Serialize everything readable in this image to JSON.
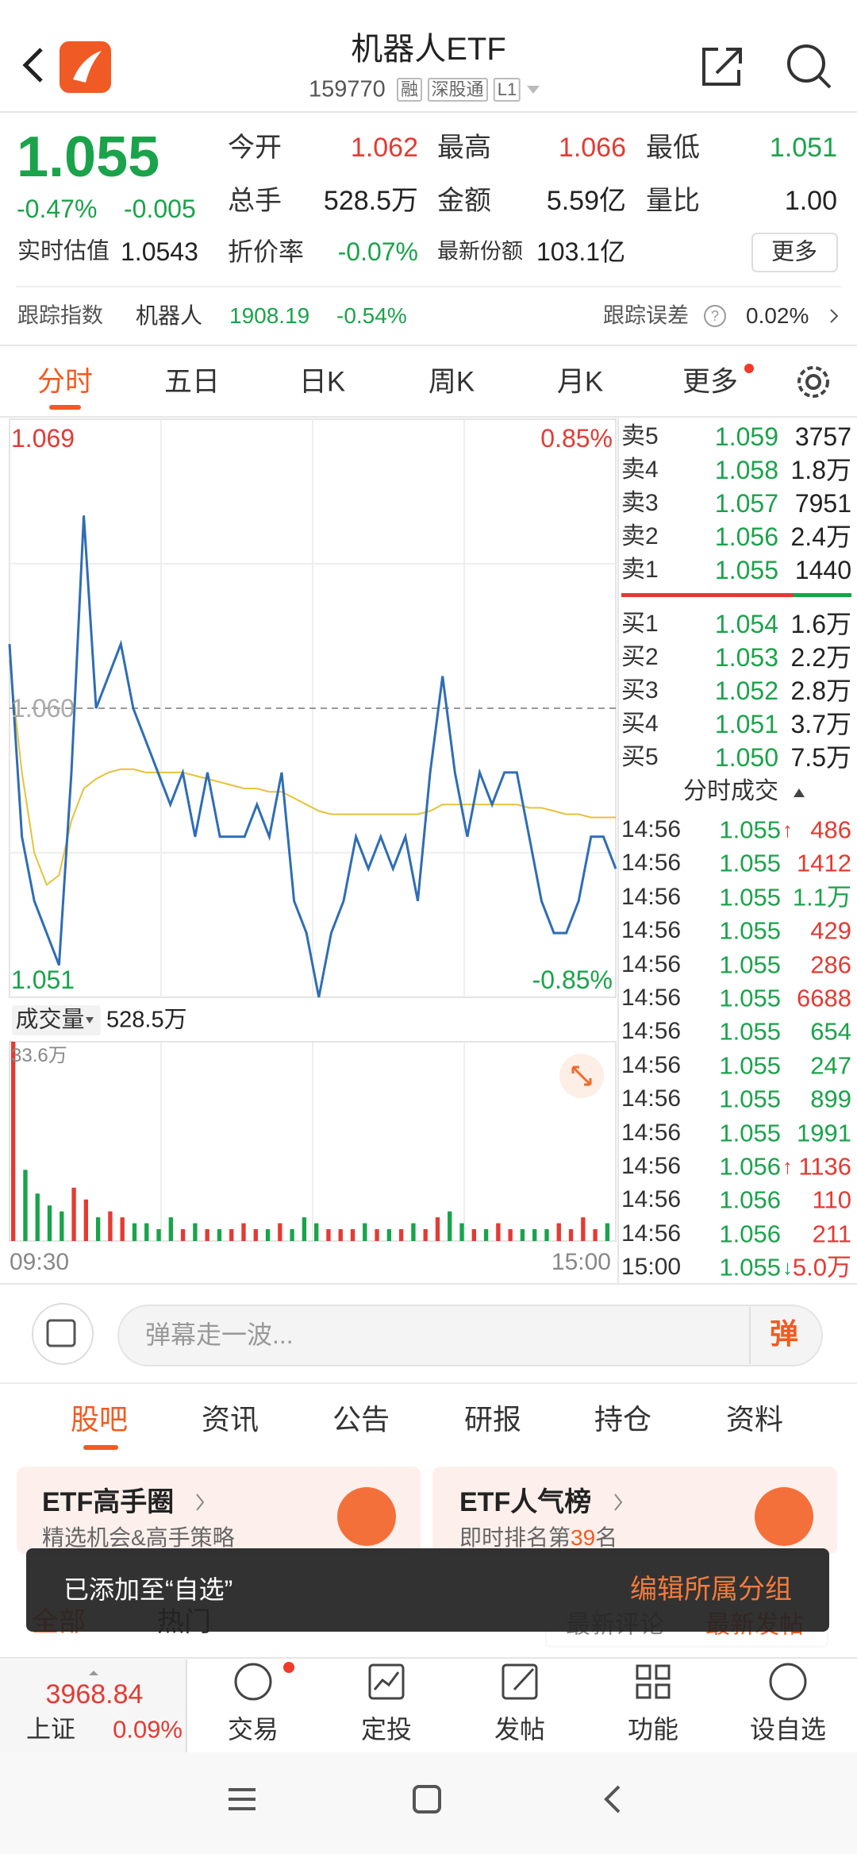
{
  "header": {
    "title": "机器人ETF",
    "code": "159770",
    "tags": [
      "融",
      "深股通",
      "L1"
    ]
  },
  "quote": {
    "price": "1.055",
    "change_pct": "-0.47%",
    "change": "-0.005",
    "stats": [
      [
        "今开",
        "1.062"
      ],
      [
        "最高",
        "1.066"
      ],
      [
        "最低",
        "1.051"
      ],
      [
        "总手",
        "528.5万"
      ],
      [
        "金额",
        "5.59亿"
      ],
      [
        "量比",
        "1.00"
      ],
      [
        "实时估值",
        "1.0543"
      ],
      [
        "折价率",
        "-0.07%"
      ],
      [
        "最新份额",
        "103.1亿"
      ]
    ],
    "more": "更多"
  },
  "tracking": {
    "label": "跟踪指数",
    "index": "机器人",
    "value": "1908.19",
    "change": "-0.54%",
    "error_label": "跟踪误差",
    "error": "0.02%"
  },
  "tabs": [
    "分时",
    "五日",
    "日K",
    "周K",
    "月K",
    "更多"
  ],
  "chart_data": [
    {
      "type": "line",
      "ylim": [
        1.051,
        1.069
      ],
      "yticks": [
        1.069,
        {
          "value": 1.06,
          "label": "1.060"
        },
        1.051
      ],
      "y2lim": [
        -0.85,
        0.85
      ],
      "y2ticks": [
        {
          "value": 0.85,
          "label": "0.85%"
        },
        {
          "value": -0.85,
          "label": "-0.85%"
        }
      ],
      "xticks": [
        "09:30",
        "15:00"
      ],
      "series": [
        {
          "color": "#2f6db5",
          "values": [
            1.062,
            1.056,
            1.054,
            1.053,
            1.052,
            1.058,
            1.066,
            1.06,
            1.061,
            1.062,
            1.06,
            1.059,
            1.058,
            1.057,
            1.058,
            1.056,
            1.058,
            1.056,
            1.056,
            1.056,
            1.057,
            1.056,
            1.058,
            1.054,
            1.053,
            1.051,
            1.053,
            1.054,
            1.056,
            1.055,
            1.056,
            1.055,
            1.056,
            1.054,
            1.058,
            1.061,
            1.058,
            1.056,
            1.058,
            1.057,
            1.058,
            1.058,
            1.056,
            1.054,
            1.053,
            1.053,
            1.054,
            1.056,
            1.056,
            1.055
          ]
        },
        {
          "color": "#e6c23a",
          "values": [
            1.0615,
            1.058,
            1.0555,
            1.0545,
            1.0548,
            1.0565,
            1.0575,
            1.0578,
            1.058,
            1.0581,
            1.0581,
            1.058,
            1.058,
            1.058,
            1.058,
            1.0579,
            1.0578,
            1.0577,
            1.0576,
            1.0575,
            1.0575,
            1.0574,
            1.0574,
            1.0572,
            1.057,
            1.0568,
            1.0567,
            1.0567,
            1.0567,
            1.0567,
            1.0567,
            1.0567,
            1.0567,
            1.0567,
            1.0568,
            1.057,
            1.057,
            1.057,
            1.057,
            1.057,
            1.057,
            1.057,
            1.0569,
            1.0569,
            1.0568,
            1.0567,
            1.0567,
            1.0566,
            1.0566,
            1.0566
          ]
        }
      ]
    },
    {
      "type": "bar",
      "title": "成交量",
      "total": "528.5万",
      "ylim": [
        0,
        33.6
      ],
      "yticks": [
        {
          "value": 33.6,
          "label": "33.6万"
        }
      ],
      "up_color": "#e33b33",
      "down_color": "#1aa34a",
      "values": [
        33.6,
        12,
        8,
        6,
        5,
        9,
        7,
        4,
        5,
        4,
        3,
        3,
        2,
        4,
        2,
        3,
        2,
        2,
        2,
        3,
        2,
        2,
        3,
        2,
        4,
        3,
        2,
        2,
        2,
        3,
        2,
        2,
        2,
        3,
        2,
        4,
        5,
        3,
        2,
        2,
        3,
        2,
        2,
        2,
        2,
        3,
        2,
        4,
        2,
        3
      ]
    }
  ],
  "order_book": {
    "asks": [
      [
        "卖5",
        "1.059",
        "3757"
      ],
      [
        "卖4",
        "1.058",
        "1.8万"
      ],
      [
        "卖3",
        "1.057",
        "7951"
      ],
      [
        "卖2",
        "1.056",
        "2.4万"
      ],
      [
        "卖1",
        "1.055",
        "1440"
      ]
    ],
    "bids": [
      [
        "买1",
        "1.054",
        "1.6万"
      ],
      [
        "买2",
        "1.053",
        "2.2万"
      ],
      [
        "买3",
        "1.052",
        "2.8万"
      ],
      [
        "买4",
        "1.051",
        "3.7万"
      ],
      [
        "买5",
        "1.050",
        "7.5万"
      ]
    ]
  },
  "trades": {
    "title": "分时成交",
    "rows": [
      {
        "time": "14:56",
        "price": "1.055",
        "flag": "↑",
        "vol": "486",
        "vol_color": "#e33b33"
      },
      {
        "time": "14:56",
        "price": "1.055",
        "vol": "1412",
        "vol_color": "#e33b33"
      },
      {
        "time": "14:56",
        "price": "1.055",
        "vol": "1.1万",
        "vol_color": "#1aa34a"
      },
      {
        "time": "14:56",
        "price": "1.055",
        "vol": "429",
        "vol_color": "#e33b33"
      },
      {
        "time": "14:56",
        "price": "1.055",
        "vol": "286",
        "vol_color": "#e33b33"
      },
      {
        "time": "14:56",
        "price": "1.055",
        "vol": "6688",
        "vol_color": "#e33b33"
      },
      {
        "time": "14:56",
        "price": "1.055",
        "vol": "654",
        "vol_color": "#1aa34a"
      },
      {
        "time": "14:56",
        "price": "1.055",
        "vol": "247",
        "vol_color": "#1aa34a"
      },
      {
        "time": "14:56",
        "price": "1.055",
        "vol": "899",
        "vol_color": "#1aa34a"
      },
      {
        "time": "14:56",
        "price": "1.055",
        "vol": "1991",
        "vol_color": "#1aa34a"
      },
      {
        "time": "14:56",
        "price": "1.056",
        "flag": "↑",
        "vol": "1136",
        "vol_color": "#e33b33"
      },
      {
        "time": "14:56",
        "price": "1.056",
        "vol": "110",
        "vol_color": "#e33b33"
      },
      {
        "time": "14:56",
        "price": "1.056",
        "vol": "211",
        "vol_color": "#e33b33"
      },
      {
        "time": "15:00",
        "price": "1.055",
        "flag": "↓",
        "vol": "5.0万",
        "vol_color": "#e33b33"
      }
    ]
  },
  "comment": {
    "placeholder": "弹幕走一波...",
    "button": "弹"
  },
  "tabs2": [
    "股吧",
    "资讯",
    "公告",
    "研报",
    "持仓",
    "资料"
  ],
  "cards": [
    {
      "title": "ETF高手圈",
      "subtitle": "精选机会&高手策略"
    },
    {
      "title": "ETF人气榜",
      "subtitle_pre": "即时排名第",
      "rank": "39",
      "subtitle_post": "名"
    }
  ],
  "feed_tabs": [
    "全部",
    "热门"
  ],
  "sort": [
    "最新评论",
    "最新发帖"
  ],
  "toast": {
    "text": "已添加至“自选”",
    "action": "编辑所属分组"
  },
  "nav": {
    "index_value": "3968.84",
    "index_name": "上证",
    "index_change": "0.09%",
    "items": [
      "交易",
      "定投",
      "发帖",
      "功能",
      "设自选"
    ]
  }
}
